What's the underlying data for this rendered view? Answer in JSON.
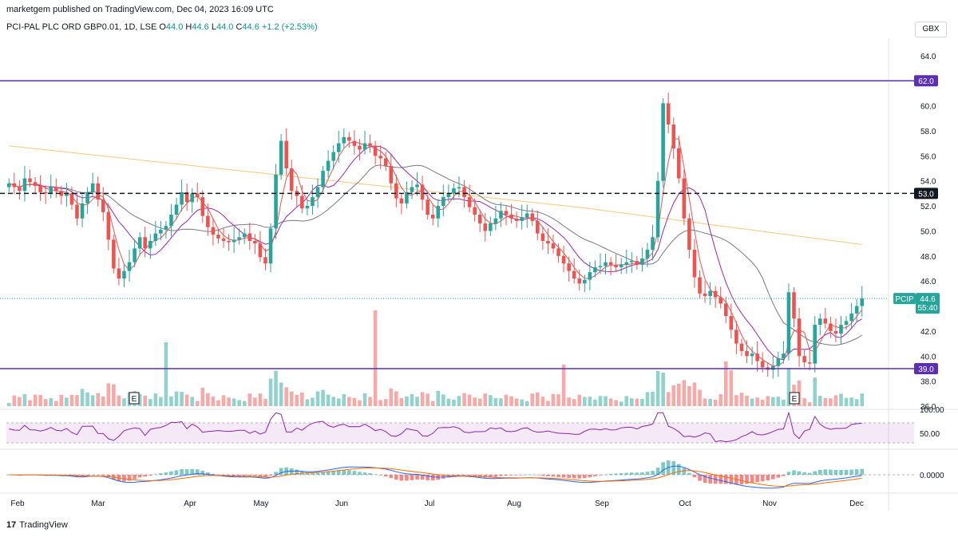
{
  "header": {
    "published": "marketgem published on TradingView.com, Dec 04, 2023 16:09 UTC",
    "symbol": "PCI-PAL PLC ORD GBP0.01, 1D, LSE",
    "o_label": "O",
    "o_value": "44.0",
    "h_label": "H",
    "h_value": "44.6",
    "l_label": "L",
    "l_value": "44.0",
    "c_label": "C",
    "c_value": "44.6",
    "change": "+1.2 (+2.53%)",
    "currency": "GBX"
  },
  "footer": {
    "brand": "TradingView",
    "mark": "17"
  },
  "colors": {
    "up": "#26a69a",
    "down": "#ef5350",
    "level_line": "#5b2fb5",
    "ma_long": "#f7c97e",
    "ma_mid": "#787b86",
    "ema_fast": "#ef5350",
    "ema_slow": "#9c27b0",
    "rsi": "#8e24aa",
    "macd": "#2962ff",
    "signal": "#ff6d00"
  },
  "chart_data": {
    "type": "candlestick",
    "y_ticks": [
      "64.0",
      "62.0",
      "60.0",
      "58.0",
      "56.0",
      "54.0",
      "52.0",
      "50.0",
      "48.0",
      "46.0",
      "42.0",
      "40.0",
      "38.0",
      "36.0"
    ],
    "ylim": [
      36,
      64.5
    ],
    "x_labels": [
      "Feb",
      "Mar",
      "Apr",
      "May",
      "Jun",
      "Jul",
      "Aug",
      "Sep",
      "Oct",
      "Nov",
      "Dec"
    ],
    "horizontal_levels": [
      {
        "value": 62.0,
        "label": "62.0",
        "style": "solid"
      },
      {
        "value": 53.0,
        "label": "53.0",
        "style": "dashed"
      },
      {
        "value": 39.0,
        "label": "39.0",
        "style": "solid"
      }
    ],
    "last_price": {
      "ticker": "PCIP",
      "value": "44.6",
      "countdown": "55:40"
    },
    "earnings_markers": [
      "E",
      "E"
    ],
    "closes": [
      53.8,
      53.5,
      53.2,
      54.2,
      53.9,
      53.6,
      53.1,
      53.0,
      53.5,
      53.2,
      52.8,
      53.0,
      52.1,
      51.0,
      52.2,
      53.1,
      53.8,
      52.5,
      51.5,
      49.3,
      47.0,
      46.2,
      46.8,
      47.5,
      48.6,
      49.5,
      48.6,
      49.2,
      49.8,
      50.1,
      50.4,
      51.3,
      52.1,
      53.1,
      52.3,
      53.0,
      52.7,
      51.2,
      50.3,
      49.7,
      49.4,
      49.2,
      49.1,
      49.3,
      49.5,
      49.8,
      49.2,
      49.0,
      47.9,
      47.4,
      50.2,
      54.5,
      57.2,
      55.0,
      53.2,
      52.8,
      51.8,
      52.0,
      52.7,
      53.5,
      54.8,
      55.6,
      56.3,
      57.0,
      57.5,
      57.2,
      56.8,
      56.5,
      57.0,
      56.8,
      56.0,
      55.8,
      55.2,
      53.8,
      52.6,
      52.2,
      53.1,
      53.5,
      53.7,
      52.5,
      51.3,
      51.0,
      52.0,
      52.7,
      53.0,
      53.4,
      53.5,
      52.7,
      51.9,
      51.3,
      50.6,
      50.0,
      50.6,
      51.0,
      51.6,
      51.3,
      51.0,
      50.8,
      51.1,
      51.4,
      50.8,
      49.8,
      49.2,
      49.0,
      48.6,
      48.0,
      47.4,
      46.8,
      46.2,
      45.8,
      46.1,
      46.7,
      47.1,
      47.2,
      47.5,
      47.3,
      47.1,
      47.3,
      47.5,
      47.6,
      47.3,
      47.8,
      48.5,
      49.5,
      54.0,
      60.2,
      58.5,
      56.6,
      54.2,
      51.0,
      48.5,
      46.3,
      45.0,
      44.8,
      45.2,
      44.7,
      44.2,
      43.2,
      42.1,
      41.0,
      40.4,
      40.0,
      40.2,
      39.6,
      39.1,
      38.9,
      39.2,
      39.8,
      40.2,
      45.1,
      43.0,
      40.0,
      39.5,
      39.4,
      42.5,
      43.0,
      42.6,
      42.0,
      41.8,
      42.5,
      42.8,
      43.4,
      44.0,
      44.6
    ]
  }
}
